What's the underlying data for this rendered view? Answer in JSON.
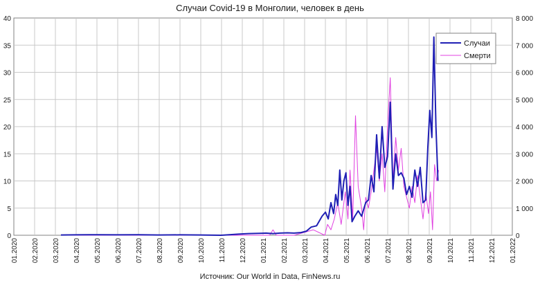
{
  "chart_data": {
    "type": "line",
    "title": "Случаи Covid-19 в Монголии, человек в день",
    "source": "Источник: Our World in Data, FinNews.ru",
    "grid": true,
    "legend_position": "top-right",
    "colors": {
      "cases": "#1f1fb4",
      "deaths": "#e040e0",
      "grid": "#c8c8c8",
      "axis": "#808080"
    },
    "x_axis": {
      "ticks": [
        "01.2020",
        "02.2020",
        "03.2020",
        "04.2020",
        "05.2020",
        "06.2020",
        "07.2020",
        "08.2020",
        "09.2020",
        "10.2020",
        "11.2020",
        "12.2020",
        "01.2021",
        "02.2021",
        "03.2021",
        "04.2021",
        "05.2021",
        "06.2021",
        "07.2021",
        "08.2021",
        "09.2021",
        "10.2021",
        "11.2021",
        "12.2021",
        "01.2022"
      ],
      "range": [
        "2020-01-01",
        "2022-01-01"
      ]
    },
    "y_left": {
      "min": 0,
      "max": 40,
      "ticks": [
        "0",
        "5",
        "10",
        "15",
        "20",
        "25",
        "30",
        "35",
        "40"
      ]
    },
    "y_right": {
      "min": 0,
      "max": 8000,
      "ticks": [
        "0",
        "1 000",
        "2 000",
        "3 000",
        "4 000",
        "5 000",
        "6 000",
        "7 000",
        "8 000"
      ]
    },
    "series": [
      {
        "name": "Случаи",
        "axis": "right",
        "x": [
          "2020-03-10",
          "2020-04-01",
          "2020-05-01",
          "2020-06-01",
          "2020-07-01",
          "2020-08-01",
          "2020-09-01",
          "2020-10-01",
          "2020-10-31",
          "2020-11-12",
          "2020-11-25",
          "2020-12-10",
          "2020-12-25",
          "2021-01-05",
          "2021-01-15",
          "2021-01-25",
          "2021-02-05",
          "2021-02-15",
          "2021-02-25",
          "2021-03-05",
          "2021-03-12",
          "2021-03-20",
          "2021-03-28",
          "2021-04-02",
          "2021-04-06",
          "2021-04-10",
          "2021-04-14",
          "2021-04-17",
          "2021-04-20",
          "2021-04-23",
          "2021-04-26",
          "2021-04-29",
          "2021-05-02",
          "2021-05-05",
          "2021-05-08",
          "2021-05-11",
          "2021-05-15",
          "2021-05-20",
          "2021-05-25",
          "2021-05-31",
          "2021-06-04",
          "2021-06-08",
          "2021-06-12",
          "2021-06-16",
          "2021-06-20",
          "2021-06-24",
          "2021-06-28",
          "2021-07-02",
          "2021-07-06",
          "2021-07-10",
          "2021-07-14",
          "2021-07-18",
          "2021-07-22",
          "2021-07-26",
          "2021-07-30",
          "2021-08-03",
          "2021-08-07",
          "2021-08-11",
          "2021-08-15",
          "2021-08-19",
          "2021-08-23",
          "2021-08-27",
          "2021-08-30",
          "2021-09-02",
          "2021-09-05",
          "2021-09-08",
          "2021-09-11",
          "2021-09-14"
        ],
        "y": [
          10,
          15,
          20,
          15,
          20,
          10,
          15,
          10,
          0,
          20,
          40,
          60,
          70,
          80,
          60,
          80,
          90,
          80,
          100,
          150,
          300,
          350,
          700,
          850,
          600,
          1200,
          800,
          1500,
          1100,
          2400,
          1300,
          2000,
          2300,
          1100,
          1800,
          500,
          700,
          900,
          700,
          1200,
          1300,
          2200,
          1600,
          3700,
          2100,
          4000,
          2500,
          2900,
          4900,
          1700,
          3000,
          2200,
          2300,
          2100,
          1500,
          1800,
          1400,
          2400,
          1800,
          2500,
          1200,
          1300,
          3200,
          4600,
          3600,
          7300,
          4000,
          2000
        ]
      },
      {
        "name": "Смерти",
        "axis": "left",
        "x": [
          "2020-03-10",
          "2020-10-31",
          "2020-11-20",
          "2020-12-20",
          "2021-01-10",
          "2021-01-15",
          "2021-01-20",
          "2021-02-01",
          "2021-02-15",
          "2021-03-01",
          "2021-03-15",
          "2021-04-01",
          "2021-04-05",
          "2021-04-10",
          "2021-04-15",
          "2021-04-20",
          "2021-04-25",
          "2021-05-01",
          "2021-05-05",
          "2021-05-08",
          "2021-05-12",
          "2021-05-16",
          "2021-05-20",
          "2021-05-25",
          "2021-05-28",
          "2021-05-31",
          "2021-06-04",
          "2021-06-08",
          "2021-06-12",
          "2021-06-16",
          "2021-06-20",
          "2021-06-24",
          "2021-06-28",
          "2021-07-02",
          "2021-07-06",
          "2021-07-10",
          "2021-07-14",
          "2021-07-18",
          "2021-07-22",
          "2021-07-26",
          "2021-07-30",
          "2021-08-03",
          "2021-08-07",
          "2021-08-11",
          "2021-08-15",
          "2021-08-19",
          "2021-08-23",
          "2021-08-27",
          "2021-08-31",
          "2021-09-03",
          "2021-09-06",
          "2021-09-09",
          "2021-09-12",
          "2021-09-15"
        ],
        "y": [
          0,
          0,
          0,
          0,
          0,
          1,
          0,
          0,
          0,
          0.5,
          1,
          0,
          2,
          1,
          3,
          6,
          2,
          8,
          3,
          12,
          3,
          22,
          9,
          5,
          1,
          7,
          5,
          8,
          12,
          16,
          10,
          15,
          8,
          20,
          29,
          10,
          18,
          12,
          16,
          9,
          7,
          5,
          9,
          6,
          11,
          7,
          3,
          8,
          4,
          8,
          1,
          13,
          10,
          12
        ]
      }
    ]
  }
}
